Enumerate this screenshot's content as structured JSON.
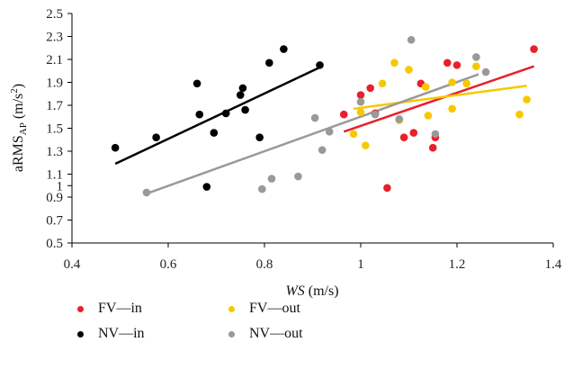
{
  "chart_data": {
    "type": "scatter",
    "xlabel_italic": "WS",
    "xlabel_unit": " (m/s)",
    "ylabel_main": "aRMS",
    "ylabel_sub": "AP",
    "ylabel_unit_pre": " (m/s",
    "ylabel_unit_sup": "2",
    "ylabel_unit_post": ")",
    "xlim": [
      0.4,
      1.4
    ],
    "ylim": [
      0.5,
      2.5
    ],
    "xticks": [
      0.4,
      0.6,
      0.8,
      1,
      1.2,
      1.4
    ],
    "xtick_labels": [
      "0.4",
      "0.6",
      "0.8",
      "1",
      "1.2",
      "1.4"
    ],
    "yticks": [
      0.5,
      0.7,
      0.9,
      1,
      1.1,
      1.3,
      1.5,
      1.7,
      1.9,
      2.1,
      2.3,
      2.5
    ],
    "ytick_labels": [
      "0.5",
      "0.7",
      "0.9",
      "1",
      "1.1",
      "1.3",
      "1.5",
      "1.7",
      "1.9",
      "2.1",
      "2.3",
      "2.5"
    ],
    "grid": false,
    "legend_position": "bottom",
    "series": [
      {
        "name": "FV—in",
        "color": "#e8202a",
        "points": [
          [
            0.965,
            1.62
          ],
          [
            1.0,
            1.79
          ],
          [
            1.02,
            1.85
          ],
          [
            1.03,
            1.63
          ],
          [
            1.055,
            0.98
          ],
          [
            1.09,
            1.42
          ],
          [
            1.11,
            1.46
          ],
          [
            1.125,
            1.89
          ],
          [
            1.15,
            1.33
          ],
          [
            1.155,
            1.42
          ],
          [
            1.18,
            2.07
          ],
          [
            1.2,
            2.05
          ],
          [
            1.36,
            2.19
          ]
        ],
        "trend": [
          [
            0.965,
            1.47
          ],
          [
            1.36,
            2.04
          ]
        ]
      },
      {
        "name": "FV—out",
        "color": "#f7c800",
        "points": [
          [
            0.985,
            1.45
          ],
          [
            1.0,
            1.64
          ],
          [
            1.01,
            1.35
          ],
          [
            1.045,
            1.89
          ],
          [
            1.07,
            2.07
          ],
          [
            1.08,
            1.57
          ],
          [
            1.1,
            2.01
          ],
          [
            1.135,
            1.86
          ],
          [
            1.14,
            1.61
          ],
          [
            1.19,
            1.9
          ],
          [
            1.19,
            1.67
          ],
          [
            1.22,
            1.89
          ],
          [
            1.24,
            2.04
          ],
          [
            1.33,
            1.62
          ],
          [
            1.345,
            1.75
          ]
        ],
        "trend": [
          [
            0.985,
            1.67
          ],
          [
            1.345,
            1.87
          ]
        ]
      },
      {
        "name": "NV—in",
        "color": "#000000",
        "points": [
          [
            0.49,
            1.33
          ],
          [
            0.575,
            1.42
          ],
          [
            0.66,
            1.89
          ],
          [
            0.665,
            1.62
          ],
          [
            0.68,
            0.99
          ],
          [
            0.695,
            1.46
          ],
          [
            0.72,
            1.63
          ],
          [
            0.75,
            1.79
          ],
          [
            0.755,
            1.85
          ],
          [
            0.76,
            1.66
          ],
          [
            0.79,
            1.42
          ],
          [
            0.81,
            2.07
          ],
          [
            0.84,
            2.19
          ],
          [
            0.915,
            2.05
          ]
        ],
        "trend": [
          [
            0.49,
            1.19
          ],
          [
            0.915,
            2.03
          ]
        ]
      },
      {
        "name": "NV—out",
        "color": "#999999",
        "points": [
          [
            0.555,
            0.94
          ],
          [
            0.795,
            0.97
          ],
          [
            0.815,
            1.06
          ],
          [
            0.87,
            1.08
          ],
          [
            0.905,
            1.59
          ],
          [
            0.92,
            1.31
          ],
          [
            0.935,
            1.47
          ],
          [
            1.0,
            1.73
          ],
          [
            1.03,
            1.62
          ],
          [
            1.08,
            1.58
          ],
          [
            1.105,
            2.27
          ],
          [
            1.155,
            1.45
          ],
          [
            1.24,
            2.12
          ],
          [
            1.26,
            1.99
          ]
        ],
        "trend": [
          [
            0.555,
            0.93
          ],
          [
            1.245,
            1.97
          ]
        ]
      }
    ]
  },
  "legend": {
    "items": [
      "FV—in",
      "FV—out",
      "NV—in",
      "NV—out"
    ]
  }
}
